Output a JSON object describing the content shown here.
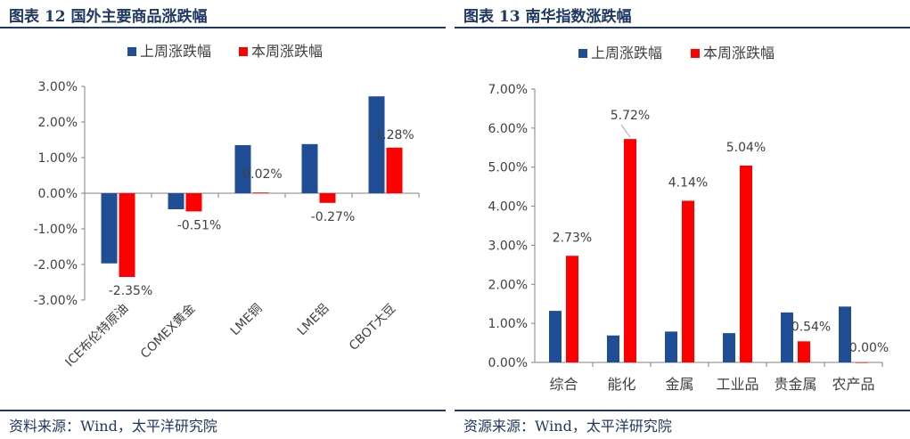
{
  "figures": [
    {
      "title": "图表 12  国外主要商品涨跌幅",
      "source": "资料来源：Wind，太平洋研究院"
    },
    {
      "title": "图表 13  南华指数涨跌幅",
      "source": "资源来源：Wind，太平洋研究院"
    }
  ],
  "chart_data": [
    {
      "type": "bar",
      "categories": [
        "ICE布伦特原油",
        "COMEX黄金",
        "LME铜",
        "LME铝",
        "CBOT大豆"
      ],
      "series": [
        {
          "name": "上周涨跌幅",
          "color": "#1f4e96",
          "values": [
            -1.97,
            -0.45,
            1.35,
            1.38,
            2.72
          ]
        },
        {
          "name": "本周涨跌幅",
          "color": "#ff0000",
          "values": [
            -2.35,
            -0.51,
            0.02,
            -0.27,
            1.28
          ]
        }
      ],
      "data_labels": [
        "-2.35%",
        "-0.51%",
        "0.02%",
        "-0.27%",
        "1.28%"
      ],
      "yticks": [
        "3.00%",
        "2.00%",
        "1.00%",
        "0.00%",
        "-1.00%",
        "-2.00%",
        "-3.00%"
      ],
      "ylim": [
        -3,
        3
      ],
      "xlabel": "",
      "ylabel": "",
      "legend": "top",
      "grid": false
    },
    {
      "type": "bar",
      "categories": [
        "综合",
        "能化",
        "金属",
        "工业品",
        "贵金属",
        "农产品"
      ],
      "series": [
        {
          "name": "上周涨跌幅",
          "color": "#1f4e96",
          "values": [
            1.32,
            0.69,
            0.79,
            0.75,
            1.28,
            1.43
          ]
        },
        {
          "name": "本周涨跌幅",
          "color": "#ff0000",
          "values": [
            2.73,
            5.72,
            4.14,
            5.04,
            0.54,
            0.0
          ]
        }
      ],
      "data_labels": [
        "2.73%",
        "5.72%",
        "4.14%",
        "5.04%",
        "0.54%",
        "0.00%"
      ],
      "yticks": [
        "7.00%",
        "6.00%",
        "5.00%",
        "4.00%",
        "3.00%",
        "2.00%",
        "1.00%",
        "0.00%"
      ],
      "ylim": [
        0,
        7
      ],
      "xlabel": "",
      "ylabel": "",
      "legend": "top",
      "grid": false
    }
  ]
}
